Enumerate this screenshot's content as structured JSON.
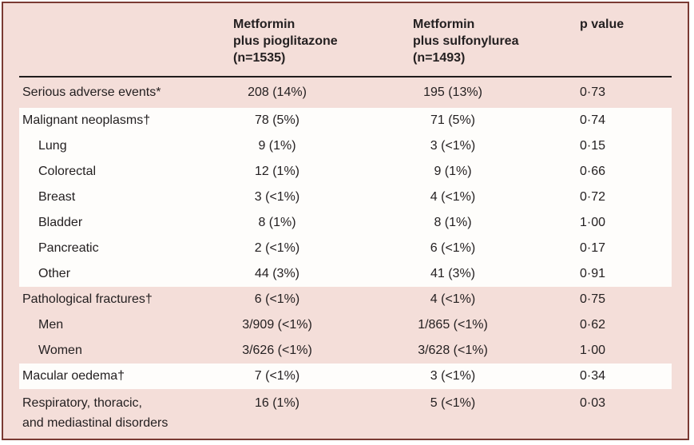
{
  "table": {
    "header": {
      "col1": {
        "l1": "Metformin",
        "l2": "plus pioglitazone",
        "l3": "(n=1535)"
      },
      "col2": {
        "l1": "Metformin",
        "l2": "plus sulfonylurea",
        "l3": "(n=1493)"
      },
      "col3": "p value"
    },
    "rows": [
      {
        "label": "Serious adverse events*",
        "indent": false,
        "v1": "208 (14%)",
        "v2": "195 (13%)",
        "p": "0·73"
      },
      {
        "label": "Malignant neoplasms†",
        "indent": false,
        "v1": "78 (5%)",
        "v2": "71 (5%)",
        "p": "0·74"
      },
      {
        "label": "Lung",
        "indent": true,
        "v1": "9 (1%)",
        "v2": "3 (<1%)",
        "p": "0·15"
      },
      {
        "label": "Colorectal",
        "indent": true,
        "v1": "12 (1%)",
        "v2": "9 (1%)",
        "p": "0·66"
      },
      {
        "label": "Breast",
        "indent": true,
        "v1": "3 (<1%)",
        "v2": "4 (<1%)",
        "p": "0·72"
      },
      {
        "label": "Bladder",
        "indent": true,
        "v1": "8 (1%)",
        "v2": "8 (1%)",
        "p": "1·00"
      },
      {
        "label": "Pancreatic",
        "indent": true,
        "v1": "2 (<1%)",
        "v2": "6 (<1%)",
        "p": "0·17"
      },
      {
        "label": "Other",
        "indent": true,
        "v1": "44 (3%)",
        "v2": "41 (3%)",
        "p": "0·91"
      },
      {
        "label": "Pathological fractures†",
        "indent": false,
        "v1": "6 (<1%)",
        "v2": "4 (<1%)",
        "p": "0·75"
      },
      {
        "label": "Men",
        "indent": true,
        "v1": "3/909 (<1%)",
        "v2": "1/865 (<1%)",
        "p": "0·62"
      },
      {
        "label": "Women",
        "indent": true,
        "v1": "3/626 (<1%)",
        "v2": "3/628 (<1%)",
        "p": "1·00"
      },
      {
        "label": "Macular oedema†",
        "indent": false,
        "v1": "7 (<1%)",
        "v2": "3 (<1%)",
        "p": "0·34"
      },
      {
        "label": "Respiratory, thoracic,\nand mediastinal disorders",
        "indent": false,
        "v1": "16 (1%)",
        "v2": "5 (<1%)",
        "p": "0·03"
      }
    ],
    "colors": {
      "background_pink": "#f4ded9",
      "band_white": "#fefdfb",
      "frame_border": "#7a3a33",
      "header_rule": "#201c1c",
      "text": "#242021"
    }
  }
}
